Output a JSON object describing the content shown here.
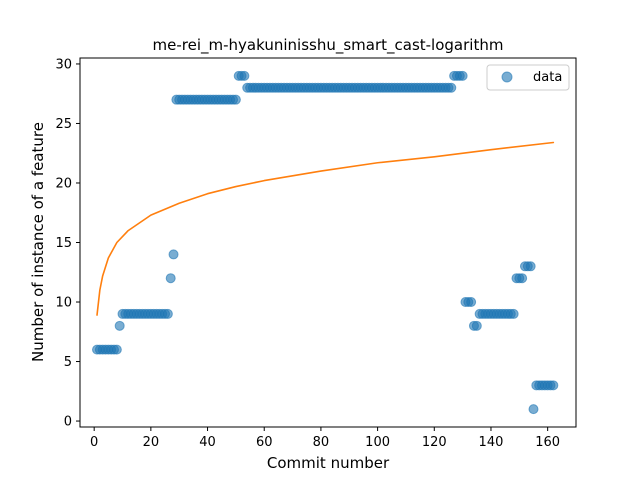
{
  "chart_data": {
    "type": "scatter",
    "title": "me-rei_m-hyakuninisshu_smart_cast-logarithm",
    "xlabel": "Commit number",
    "ylabel": "Number of instance of a feature",
    "xlim": [
      -5,
      170
    ],
    "ylim": [
      -0.5,
      30.5
    ],
    "xticks": [
      0,
      20,
      40,
      60,
      80,
      100,
      120,
      140,
      160
    ],
    "yticks": [
      0,
      5,
      10,
      15,
      20,
      25,
      30
    ],
    "grid": false,
    "legend_position": "top-right",
    "series": [
      {
        "name": "data",
        "kind": "scatter",
        "color": "#1f77b4",
        "alpha": 0.6,
        "segments": [
          {
            "x_start": 1,
            "x_end": 8,
            "y": 6
          },
          {
            "x_start": 9,
            "x_end": 9,
            "y": 8
          },
          {
            "x_start": 10,
            "x_end": 26,
            "y": 9
          },
          {
            "x_start": 27,
            "x_end": 27,
            "y": 12
          },
          {
            "x_start": 28,
            "x_end": 28,
            "y": 14
          },
          {
            "x_start": 29,
            "x_end": 50,
            "y": 27
          },
          {
            "x_start": 51,
            "x_end": 53,
            "y": 29
          },
          {
            "x_start": 54,
            "x_end": 126,
            "y": 28
          },
          {
            "x_start": 127,
            "x_end": 130,
            "y": 29
          },
          {
            "x_start": 131,
            "x_end": 133,
            "y": 10
          },
          {
            "x_start": 134,
            "x_end": 135,
            "y": 8
          },
          {
            "x_start": 136,
            "x_end": 148,
            "y": 9
          },
          {
            "x_start": 149,
            "x_end": 151,
            "y": 12
          },
          {
            "x_start": 152,
            "x_end": 154,
            "y": 13
          },
          {
            "x_start": 155,
            "x_end": 155,
            "y": 1
          },
          {
            "x_start": 156,
            "x_end": 162,
            "y": 3
          }
        ]
      },
      {
        "kind": "line",
        "color": "#ff7f0e",
        "x": [
          1,
          2,
          3,
          5,
          8,
          12,
          20,
          30,
          40,
          50,
          60,
          80,
          100,
          120,
          140,
          162
        ],
        "y": [
          8.9,
          11.0,
          12.2,
          13.7,
          15.0,
          16.0,
          17.3,
          18.3,
          19.1,
          19.7,
          20.2,
          21.0,
          21.7,
          22.2,
          22.8,
          23.4
        ]
      }
    ]
  }
}
